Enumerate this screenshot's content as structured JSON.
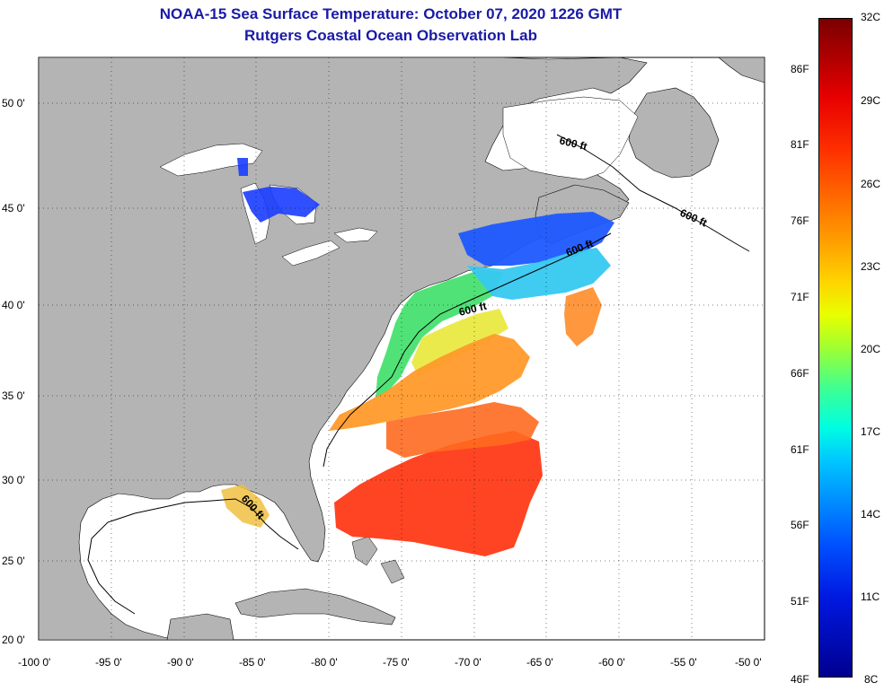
{
  "header": {
    "title": "NOAA-15 Sea Surface Temperature:  October 07, 2020 1226 GMT",
    "subtitle": "Rutgers Coastal Ocean Observation Lab"
  },
  "map": {
    "lat_ticks": [
      "50 0'",
      "45 0'",
      "40 0'",
      "35 0'",
      "30 0'",
      "25 0'",
      "20 0'"
    ],
    "lon_ticks": [
      "-100 0'",
      "-95 0'",
      "-90 0'",
      "-85 0'",
      "-80 0'",
      "-75 0'",
      "-70 0'",
      "-65 0'",
      "-60 0'",
      "-55 0'",
      "-50 0'"
    ],
    "contour_labels": [
      "600 ft",
      "600 ft",
      "600 ft",
      "600 ft",
      "600 ft"
    ],
    "land_color": "#b4b4b4",
    "lake_color": "#ffffff"
  },
  "colorbar": {
    "celsius": [
      "32C",
      "29C",
      "26C",
      "23C",
      "20C",
      "17C",
      "14C",
      "11C",
      "8C"
    ],
    "fahrenheit": [
      "86F",
      "81F",
      "76F",
      "71F",
      "66F",
      "61F",
      "56F",
      "51F",
      "46F"
    ]
  }
}
